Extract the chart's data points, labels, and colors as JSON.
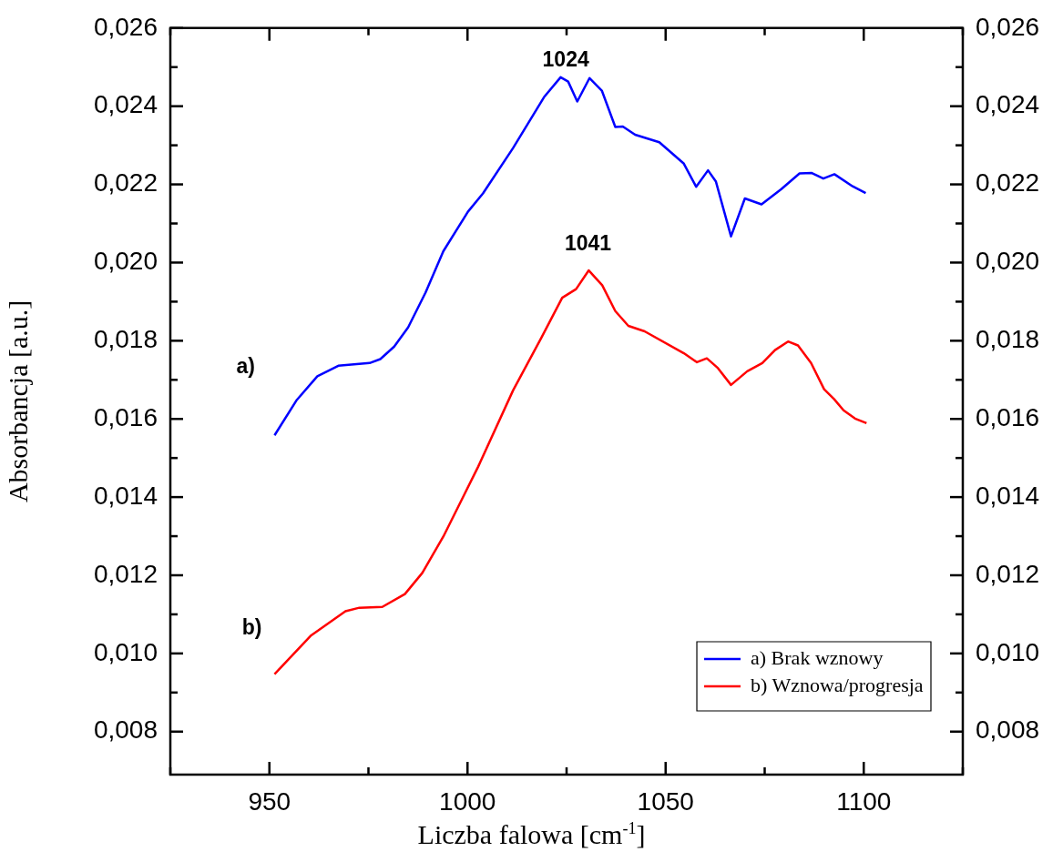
{
  "chart_data": {
    "type": "line",
    "xlabel": "Liczba falowa [cm$^{-1}$]",
    "ylabel": "Absorbancja [a.u.]",
    "xlim": [
      925,
      1125
    ],
    "ylim": [
      0.0069,
      0.026
    ],
    "y2lim": [
      0.0069,
      0.026
    ],
    "xticks": [
      {
        "value": 925,
        "label": null
      },
      950,
      {
        "value": 975,
        "label": null
      },
      1000,
      {
        "value": 1025,
        "label": null
      },
      1050,
      {
        "value": 1075,
        "label": null
      },
      1100,
      {
        "value": 1125,
        "label": null
      }
    ],
    "yticks": [
      {
        "value": 0.008,
        "label": "0,008"
      },
      {
        "value": 0.009,
        "label": null
      },
      {
        "value": 0.01,
        "label": "0,010"
      },
      {
        "value": 0.011,
        "label": null
      },
      {
        "value": 0.012,
        "label": "0,012"
      },
      {
        "value": 0.013,
        "label": null
      },
      {
        "value": 0.014,
        "label": "0,014"
      },
      {
        "value": 0.015,
        "label": null
      },
      {
        "value": 0.016,
        "label": "0,016"
      },
      {
        "value": 0.017,
        "label": null
      },
      {
        "value": 0.018,
        "label": "0,018"
      },
      {
        "value": 0.019,
        "label": null
      },
      {
        "value": 0.02,
        "label": "0,020"
      },
      {
        "value": 0.021,
        "label": null
      },
      {
        "value": 0.022,
        "label": "0,022"
      },
      {
        "value": 0.023,
        "label": null
      },
      {
        "value": 0.024,
        "label": "0,024"
      },
      {
        "value": 0.025,
        "label": null
      },
      {
        "value": 0.026,
        "label": "0,026"
      }
    ],
    "y2ticks": [
      {
        "value": 0.008,
        "label": "0,008"
      },
      {
        "value": 0.009,
        "label": null
      },
      {
        "value": 0.01,
        "label": "0,010"
      },
      {
        "value": 0.011,
        "label": null
      },
      {
        "value": 0.012,
        "label": "0,012"
      },
      {
        "value": 0.013,
        "label": null
      },
      {
        "value": 0.014,
        "label": "0,014"
      },
      {
        "value": 0.015,
        "label": null
      },
      {
        "value": 0.016,
        "label": "0,016"
      },
      {
        "value": 0.017,
        "label": null
      },
      {
        "value": 0.018,
        "label": "0,018"
      },
      {
        "value": 0.019,
        "label": null
      },
      {
        "value": 0.02,
        "label": "0,020"
      },
      {
        "value": 0.021,
        "label": null
      },
      {
        "value": 0.022,
        "label": "0,022"
      },
      {
        "value": 0.023,
        "label": null
      },
      {
        "value": 0.024,
        "label": "0,024"
      },
      {
        "value": 0.025,
        "label": null
      },
      {
        "value": 0.026,
        "label": "0,026"
      }
    ],
    "legend": "bottom right",
    "marker": "none",
    "line_style": "solid",
    "series": [
      {
        "name": "a) Brak wznowy",
        "color": "#0000ff",
        "x": [
          951.3,
          956.8,
          962.1,
          967.4,
          975.3,
          978,
          981.5,
          985,
          989.4,
          993.9,
          1000.1,
          1003.9,
          1011.5,
          1019.3,
          1023.5,
          1025.4,
          1027.7,
          1030.8,
          1033.9,
          1037.3,
          1039.2,
          1042.3,
          1048.4,
          1054.6,
          1057.7,
          1060.7,
          1062.7,
          1066.5,
          1070,
          1074.2,
          1079.2,
          1083.8,
          1086.9,
          1089.8,
          1092.6,
          1097.2,
          1100.5
        ],
        "values": [
          0.01558,
          0.01647,
          0.01709,
          0.01736,
          0.01743,
          0.01753,
          0.01785,
          0.01834,
          0.01923,
          0.02029,
          0.0213,
          0.02177,
          0.02293,
          0.02423,
          0.02474,
          0.02463,
          0.02412,
          0.02472,
          0.0244,
          0.02347,
          0.02348,
          0.02327,
          0.02308,
          0.02253,
          0.02194,
          0.02236,
          0.02207,
          0.02067,
          0.02164,
          0.02149,
          0.02188,
          0.02228,
          0.02229,
          0.02215,
          0.02226,
          0.02195,
          0.02178
        ]
      },
      {
        "name": "b) Wznowa/progresja",
        "color": "#ff0000",
        "x": [
          951.3,
          960.4,
          969.2,
          972.7,
          978.5,
          984.2,
          988.6,
          993.9,
          1002.7,
          1011.5,
          1018.6,
          1023.9,
          1027.4,
          1030.6,
          1034,
          1037.3,
          1040.6,
          1044.7,
          1054.6,
          1057.9,
          1060.4,
          1063.2,
          1066.5,
          1070.6,
          1074.4,
          1077.6,
          1080.9,
          1083.4,
          1086.7,
          1090,
          1092.5,
          1094.9,
          1097.8,
          1100.7
        ],
        "values": [
          0.00947,
          0.01045,
          0.01108,
          0.01117,
          0.01119,
          0.01152,
          0.01206,
          0.01299,
          0.01478,
          0.01673,
          0.01807,
          0.0191,
          0.01932,
          0.0198,
          0.01942,
          0.01876,
          0.01838,
          0.01824,
          0.01768,
          0.01745,
          0.01755,
          0.0173,
          0.01687,
          0.01722,
          0.01743,
          0.01776,
          0.01798,
          0.01788,
          0.01743,
          0.01676,
          0.01651,
          0.01622,
          0.01601,
          0.01589
        ]
      }
    ],
    "annotations": [
      "1024",
      "1041",
      "a)",
      "b)"
    ]
  }
}
